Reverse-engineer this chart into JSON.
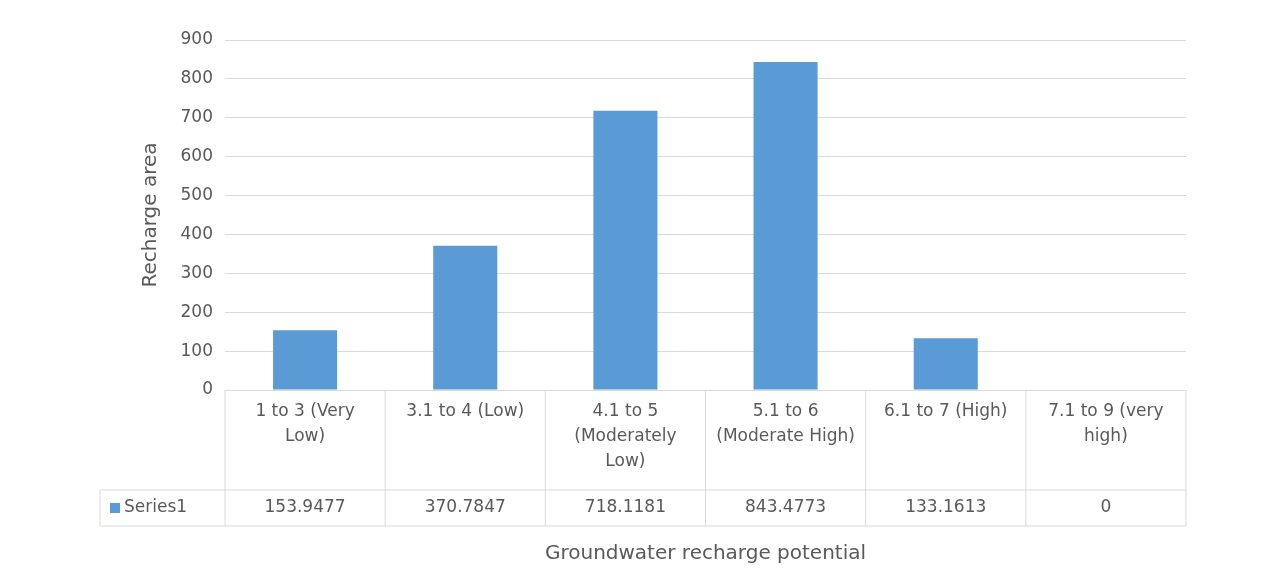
{
  "chart_data": {
    "type": "bar",
    "xlabel": "Groundwater recharge potential",
    "ylabel": "Recharge area",
    "categories": [
      "1 to 3 (Very Low)",
      "3.1 to 4 (Low)",
      "4.1 to 5 (Moderately Low)",
      "5.1 to 6 (Moderate High)",
      "6.1 to 7 (High)",
      "7.1 to 9 (very high)"
    ],
    "series": [
      {
        "name": "Series1",
        "color": "#5b9bd5",
        "values": [
          153.9477,
          370.7847,
          718.1181,
          843.4773,
          133.1613,
          0
        ]
      }
    ],
    "ylim": [
      0,
      900
    ],
    "yticks": [
      0,
      100,
      200,
      300,
      400,
      500,
      600,
      700,
      800,
      900
    ],
    "grid": "y",
    "data_labels": true,
    "legend": "bottom"
  }
}
